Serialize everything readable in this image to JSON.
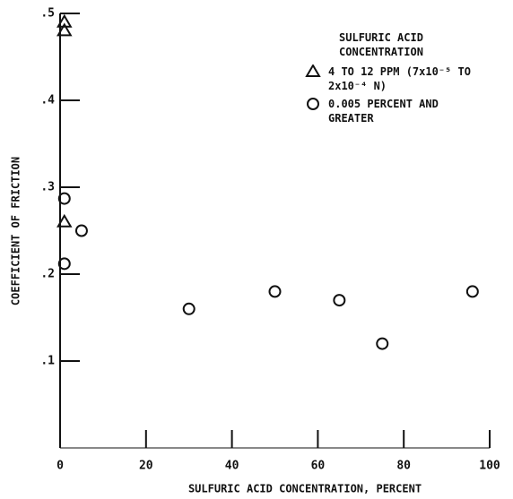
{
  "chart_data": {
    "type": "scatter",
    "x_label": "SULFURIC ACID CONCENTRATION, PERCENT",
    "y_label": "COEFFICIENT OF FRICTION",
    "legend_title": "SULFURIC ACID CONCENTRATION",
    "xlim": [
      0,
      100
    ],
    "xticks": [
      0,
      20,
      40,
      60,
      80,
      100
    ],
    "ylim": [
      0,
      0.5
    ],
    "yticks": [
      {
        "value": 0.1,
        "label": ".1"
      },
      {
        "value": 0.2,
        "label": ".2"
      },
      {
        "value": 0.3,
        "label": ".3"
      },
      {
        "value": 0.4,
        "label": ".4"
      },
      {
        "value": 0.5,
        "label": ".5"
      }
    ],
    "color": "#111111",
    "series": [
      {
        "name": "4 TO 12 PPM (7x10⁻⁵ TO 2x10⁻⁴ N)",
        "marker": "triangle",
        "x": [
          1,
          1,
          1
        ],
        "values": [
          0.49,
          0.48,
          0.26
        ]
      },
      {
        "name": "0.005 PERCENT AND GREATER",
        "marker": "circle",
        "x": [
          1,
          1,
          5,
          30,
          50,
          65,
          75,
          96
        ],
        "values": [
          0.287,
          0.212,
          0.25,
          0.16,
          0.18,
          0.17,
          0.12,
          0.18
        ]
      }
    ]
  }
}
